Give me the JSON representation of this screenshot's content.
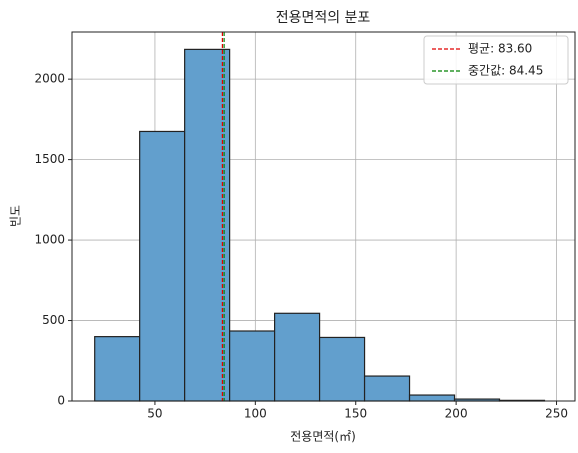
{
  "chart_data": {
    "type": "histogram",
    "title": "전용면적의 분포",
    "xlabel": "전용면적(㎡)",
    "ylabel": "빈도",
    "bins": [
      20,
      42.4,
      64.8,
      87.2,
      109.6,
      132,
      154.4,
      176.8,
      199.2,
      221.6,
      244
    ],
    "values": [
      400,
      1675,
      2185,
      435,
      545,
      395,
      155,
      37,
      12,
      4
    ],
    "color": "#629fcd",
    "edgecolor": "#222222",
    "xlim": [
      8.7,
      259.2
    ],
    "xticks": [
      50,
      100,
      150,
      200,
      250
    ],
    "ylim": [
      0,
      2293
    ],
    "yticks": [
      0,
      500,
      1000,
      1500,
      2000
    ],
    "grid": true,
    "vlines": [
      {
        "name": "평균: 83.60",
        "value": 83.6,
        "color": "#e00000"
      },
      {
        "name": "중간값: 84.45",
        "value": 84.45,
        "color": "#008000"
      }
    ],
    "legend": "upper right"
  }
}
